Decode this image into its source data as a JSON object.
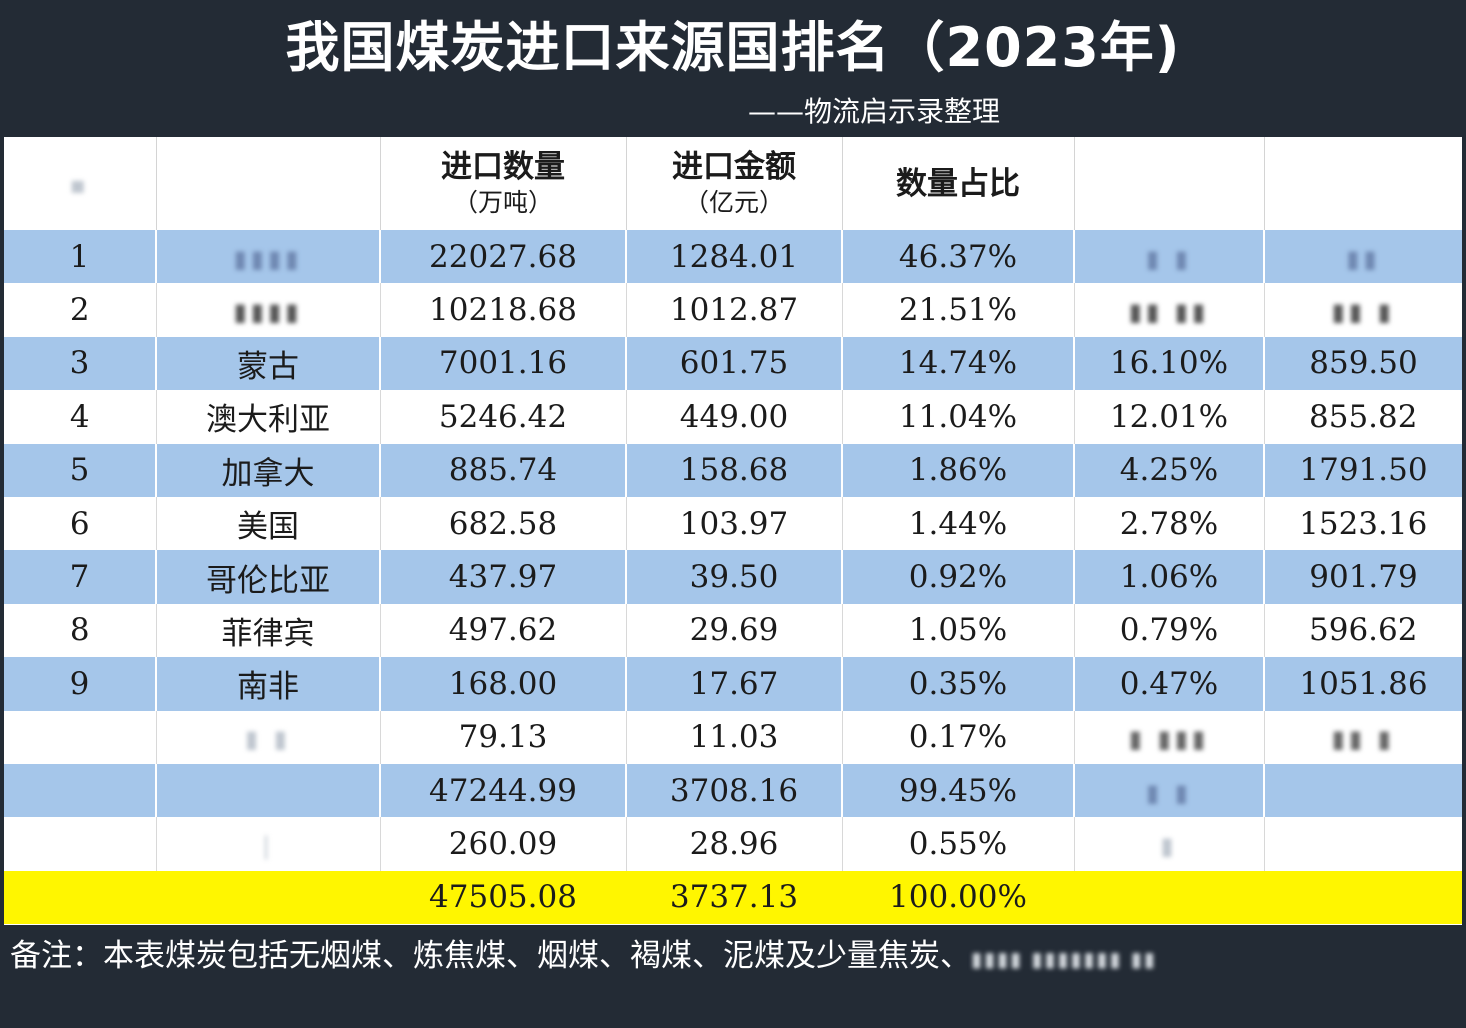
{
  "header": {
    "title": "我国煤炭进口来源国排名（2023年)",
    "subtitle": "——物流启示录整理"
  },
  "table": {
    "columns": [
      {
        "label": "",
        "unit": ""
      },
      {
        "label": "",
        "unit": ""
      },
      {
        "label": "进口数量",
        "unit": "（万吨）"
      },
      {
        "label": "进口金额",
        "unit": "（亿元）"
      },
      {
        "label": "数量占比",
        "unit": ""
      },
      {
        "label": "",
        "unit": ""
      },
      {
        "label": "",
        "unit": ""
      }
    ],
    "rows": [
      {
        "rank": "1",
        "country": "",
        "quantity": "22027.68",
        "amount": "1284.01",
        "share": "46.37%",
        "col6": "",
        "col7": ""
      },
      {
        "rank": "2",
        "country": "",
        "quantity": "10218.68",
        "amount": "1012.87",
        "share": "21.51%",
        "col6": "",
        "col7": ""
      },
      {
        "rank": "3",
        "country": "蒙古",
        "quantity": "7001.16",
        "amount": "601.75",
        "share": "14.74%",
        "col6": "16.10%",
        "col7": "859.50"
      },
      {
        "rank": "4",
        "country": "澳大利亚",
        "quantity": "5246.42",
        "amount": "449.00",
        "share": "11.04%",
        "col6": "12.01%",
        "col7": "855.82"
      },
      {
        "rank": "5",
        "country": "加拿大",
        "quantity": "885.74",
        "amount": "158.68",
        "share": "1.86%",
        "col6": "4.25%",
        "col7": "1791.50"
      },
      {
        "rank": "6",
        "country": "美国",
        "quantity": "682.58",
        "amount": "103.97",
        "share": "1.44%",
        "col6": "2.78%",
        "col7": "1523.16"
      },
      {
        "rank": "7",
        "country": "哥伦比亚",
        "quantity": "437.97",
        "amount": "39.50",
        "share": "0.92%",
        "col6": "1.06%",
        "col7": "901.79"
      },
      {
        "rank": "8",
        "country": "菲律宾",
        "quantity": "497.62",
        "amount": "29.69",
        "share": "1.05%",
        "col6": "0.79%",
        "col7": "596.62"
      },
      {
        "rank": "9",
        "country": "南非",
        "quantity": "168.00",
        "amount": "17.67",
        "share": "0.35%",
        "col6": "0.47%",
        "col7": "1051.86"
      },
      {
        "rank": "",
        "country": "",
        "quantity": "79.13",
        "amount": "11.03",
        "share": "0.17%",
        "col6": "",
        "col7": ""
      },
      {
        "rank": "",
        "country": "",
        "quantity": "47244.99",
        "amount": "3708.16",
        "share": "99.45%",
        "col6": "",
        "col7": ""
      },
      {
        "rank": "",
        "country": "",
        "quantity": "260.09",
        "amount": "28.96",
        "share": "0.55%",
        "col6": "",
        "col7": ""
      }
    ],
    "total": {
      "quantity": "47505.08",
      "amount": "3737.13",
      "share": "100.00%"
    }
  },
  "note": "备注：本表煤炭包括无烟煤、炼焦煤、烟煤、褐煤、泥煤及少量焦炭、",
  "colors": {
    "background": "#232b35",
    "band_blue": "#a5c6ea",
    "total_yellow": "#fff600"
  }
}
